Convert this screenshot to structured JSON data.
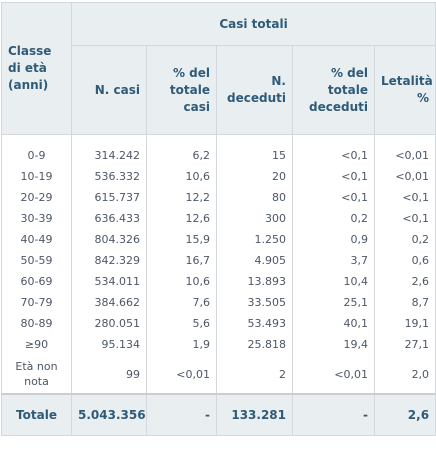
{
  "table": {
    "group_header": "Casi totali",
    "columns": [
      "Classe di età (anni)",
      "N. casi",
      "% del totale casi",
      "N. deceduti",
      "% del totale deceduti",
      "Letalità %"
    ],
    "rows": [
      [
        "0-9",
        "314.242",
        "6,2",
        "15",
        "<0,1",
        "<0,01"
      ],
      [
        "10-19",
        "536.332",
        "10,6",
        "20",
        "<0,1",
        "<0,01"
      ],
      [
        "20-29",
        "615.737",
        "12,2",
        "80",
        "<0,1",
        "<0,1"
      ],
      [
        "30-39",
        "636.433",
        "12,6",
        "300",
        "0,2",
        "<0,1"
      ],
      [
        "40-49",
        "804.326",
        "15,9",
        "1.250",
        "0,9",
        "0,2"
      ],
      [
        "50-59",
        "842.329",
        "16,7",
        "4.905",
        "3,7",
        "0,6"
      ],
      [
        "60-69",
        "534.011",
        "10,6",
        "13.893",
        "10,4",
        "2,6"
      ],
      [
        "70-79",
        "384.662",
        "7,6",
        "33.505",
        "25,1",
        "8,7"
      ],
      [
        "80-89",
        "280.051",
        "5,6",
        "53.493",
        "40,1",
        "19,1"
      ],
      [
        "≥90",
        "95.134",
        "1,9",
        "25.818",
        "19,4",
        "27,1"
      ],
      [
        "Età non nota",
        "99",
        "<0,01",
        "2",
        "<0,01",
        "2,0"
      ]
    ],
    "total": [
      "Totale",
      "5.043.356",
      "-",
      "133.281",
      "-",
      "2,6"
    ]
  }
}
